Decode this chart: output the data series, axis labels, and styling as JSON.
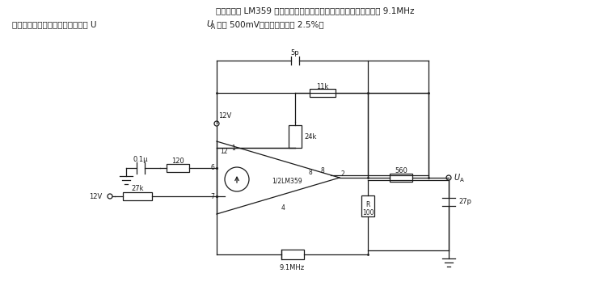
{
  "title_line1": "电路中采用 LM359 双电流差分运放电路及外接晶振，可产生频率为 9.1MHz",
  "title_line2": "的正弦振荡信号。输出信号有效值 U",
  "title_line2b": " 可达 500mV，畸变系数小于 2.5%。",
  "ua_sub": "A",
  "bg_color": "#ffffff",
  "line_color": "#1a1a1a",
  "text_color": "#1a1a1a",
  "fig_width": 7.31,
  "fig_height": 3.64,
  "dpi": 100
}
